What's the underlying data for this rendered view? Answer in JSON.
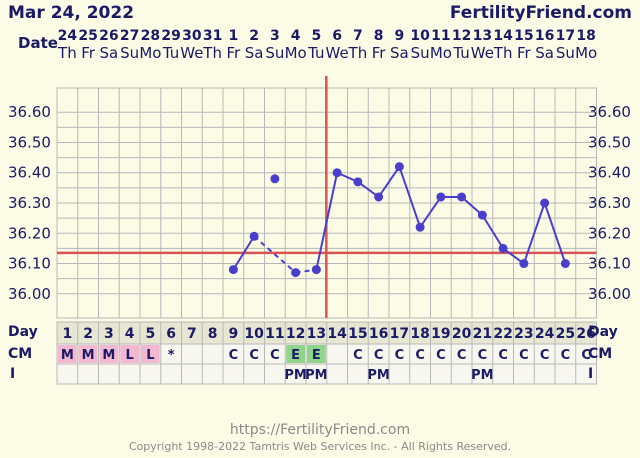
{
  "header": {
    "date": "Mar 24, 2022",
    "site": "FertilityFriend.com",
    "row_date_label": "Date",
    "row_day_label": "Day",
    "row_cm_label": "CM",
    "row_i_label": "I"
  },
  "footer": {
    "url": "https://FertilityFriend.com",
    "copyright": "Copyright 1998-2022 Tamtris Web Services Inc. - All Rights Reserved."
  },
  "colors": {
    "background": "#fbfbe6",
    "grid": "#b8b8b8",
    "line": "#4a3fcc",
    "coverline": "#d95454",
    "ovulation": "#d95454",
    "menstrual": "#f2b8d0",
    "eggwhite": "#8fd48a",
    "text": "#1a1a66"
  },
  "chart_data": {
    "type": "line",
    "y_ticks": [
      "36.60",
      "36.50",
      "36.40",
      "36.30",
      "36.20",
      "36.10",
      "36.00"
    ],
    "ylim": [
      35.92,
      36.68
    ],
    "dates": [
      "24",
      "25",
      "26",
      "27",
      "28",
      "29",
      "30",
      "31",
      "1",
      "2",
      "3",
      "4",
      "5",
      "6",
      "7",
      "8",
      "9",
      "10",
      "11",
      "12",
      "13",
      "14",
      "15",
      "16",
      "17",
      "18"
    ],
    "weekdays": [
      "Th",
      "Fr",
      "Sa",
      "Su",
      "Mo",
      "Tu",
      "We",
      "Th",
      "Fr",
      "Sa",
      "Su",
      "Mo",
      "Tu",
      "We",
      "Th",
      "Fr",
      "Sa",
      "Su",
      "Mo",
      "Tu",
      "We",
      "Th",
      "Fr",
      "Sa",
      "Su",
      "Mo"
    ],
    "days": [
      1,
      2,
      3,
      4,
      5,
      6,
      7,
      8,
      9,
      10,
      11,
      12,
      13,
      14,
      15,
      16,
      17,
      18,
      19,
      20,
      21,
      22,
      23,
      24,
      25,
      26
    ],
    "temps": [
      {
        "day": 9,
        "value": 36.08,
        "line": false
      },
      {
        "day": 10,
        "value": 36.19,
        "line": false
      },
      {
        "day": 11,
        "value": 36.38,
        "line": false
      },
      {
        "day": 12,
        "value": 36.07,
        "line": false
      },
      {
        "day": 13,
        "value": 36.08,
        "line": true
      },
      {
        "day": 14,
        "value": 36.4,
        "line": true
      },
      {
        "day": 15,
        "value": 36.37,
        "line": true
      },
      {
        "day": 16,
        "value": 36.32,
        "line": true
      },
      {
        "day": 17,
        "value": 36.42,
        "line": true
      },
      {
        "day": 18,
        "value": 36.22,
        "line": true
      },
      {
        "day": 19,
        "value": 36.32,
        "line": true
      },
      {
        "day": 20,
        "value": 36.32,
        "line": true
      },
      {
        "day": 21,
        "value": 36.26,
        "line": true
      },
      {
        "day": 22,
        "value": 36.15,
        "line": true
      },
      {
        "day": 23,
        "value": 36.1,
        "line": true
      },
      {
        "day": 24,
        "value": 36.3,
        "line": true
      },
      {
        "day": 25,
        "value": 36.1,
        "line": true
      }
    ],
    "dashed_segments": [
      [
        10,
        12
      ],
      [
        12,
        13
      ]
    ],
    "solid_segments_extra": [
      [
        9,
        10
      ]
    ],
    "coverline": 36.135,
    "ovulation_day": 13,
    "cm": [
      "M",
      "M",
      "M",
      "L",
      "L",
      "*",
      "",
      "",
      "C",
      "C",
      "C",
      "E",
      "E",
      "",
      "C",
      "C",
      "C",
      "C",
      "C",
      "C",
      "C",
      "C",
      "C",
      "C",
      "C",
      "C"
    ],
    "intercourse": [
      "",
      "",
      "",
      "",
      "",
      "",
      "",
      "",
      "",
      "",
      "",
      "PM",
      "PM",
      "",
      "",
      "PM",
      "",
      "",
      "",
      "",
      "PM",
      "",
      "",
      "",
      "",
      ""
    ]
  }
}
